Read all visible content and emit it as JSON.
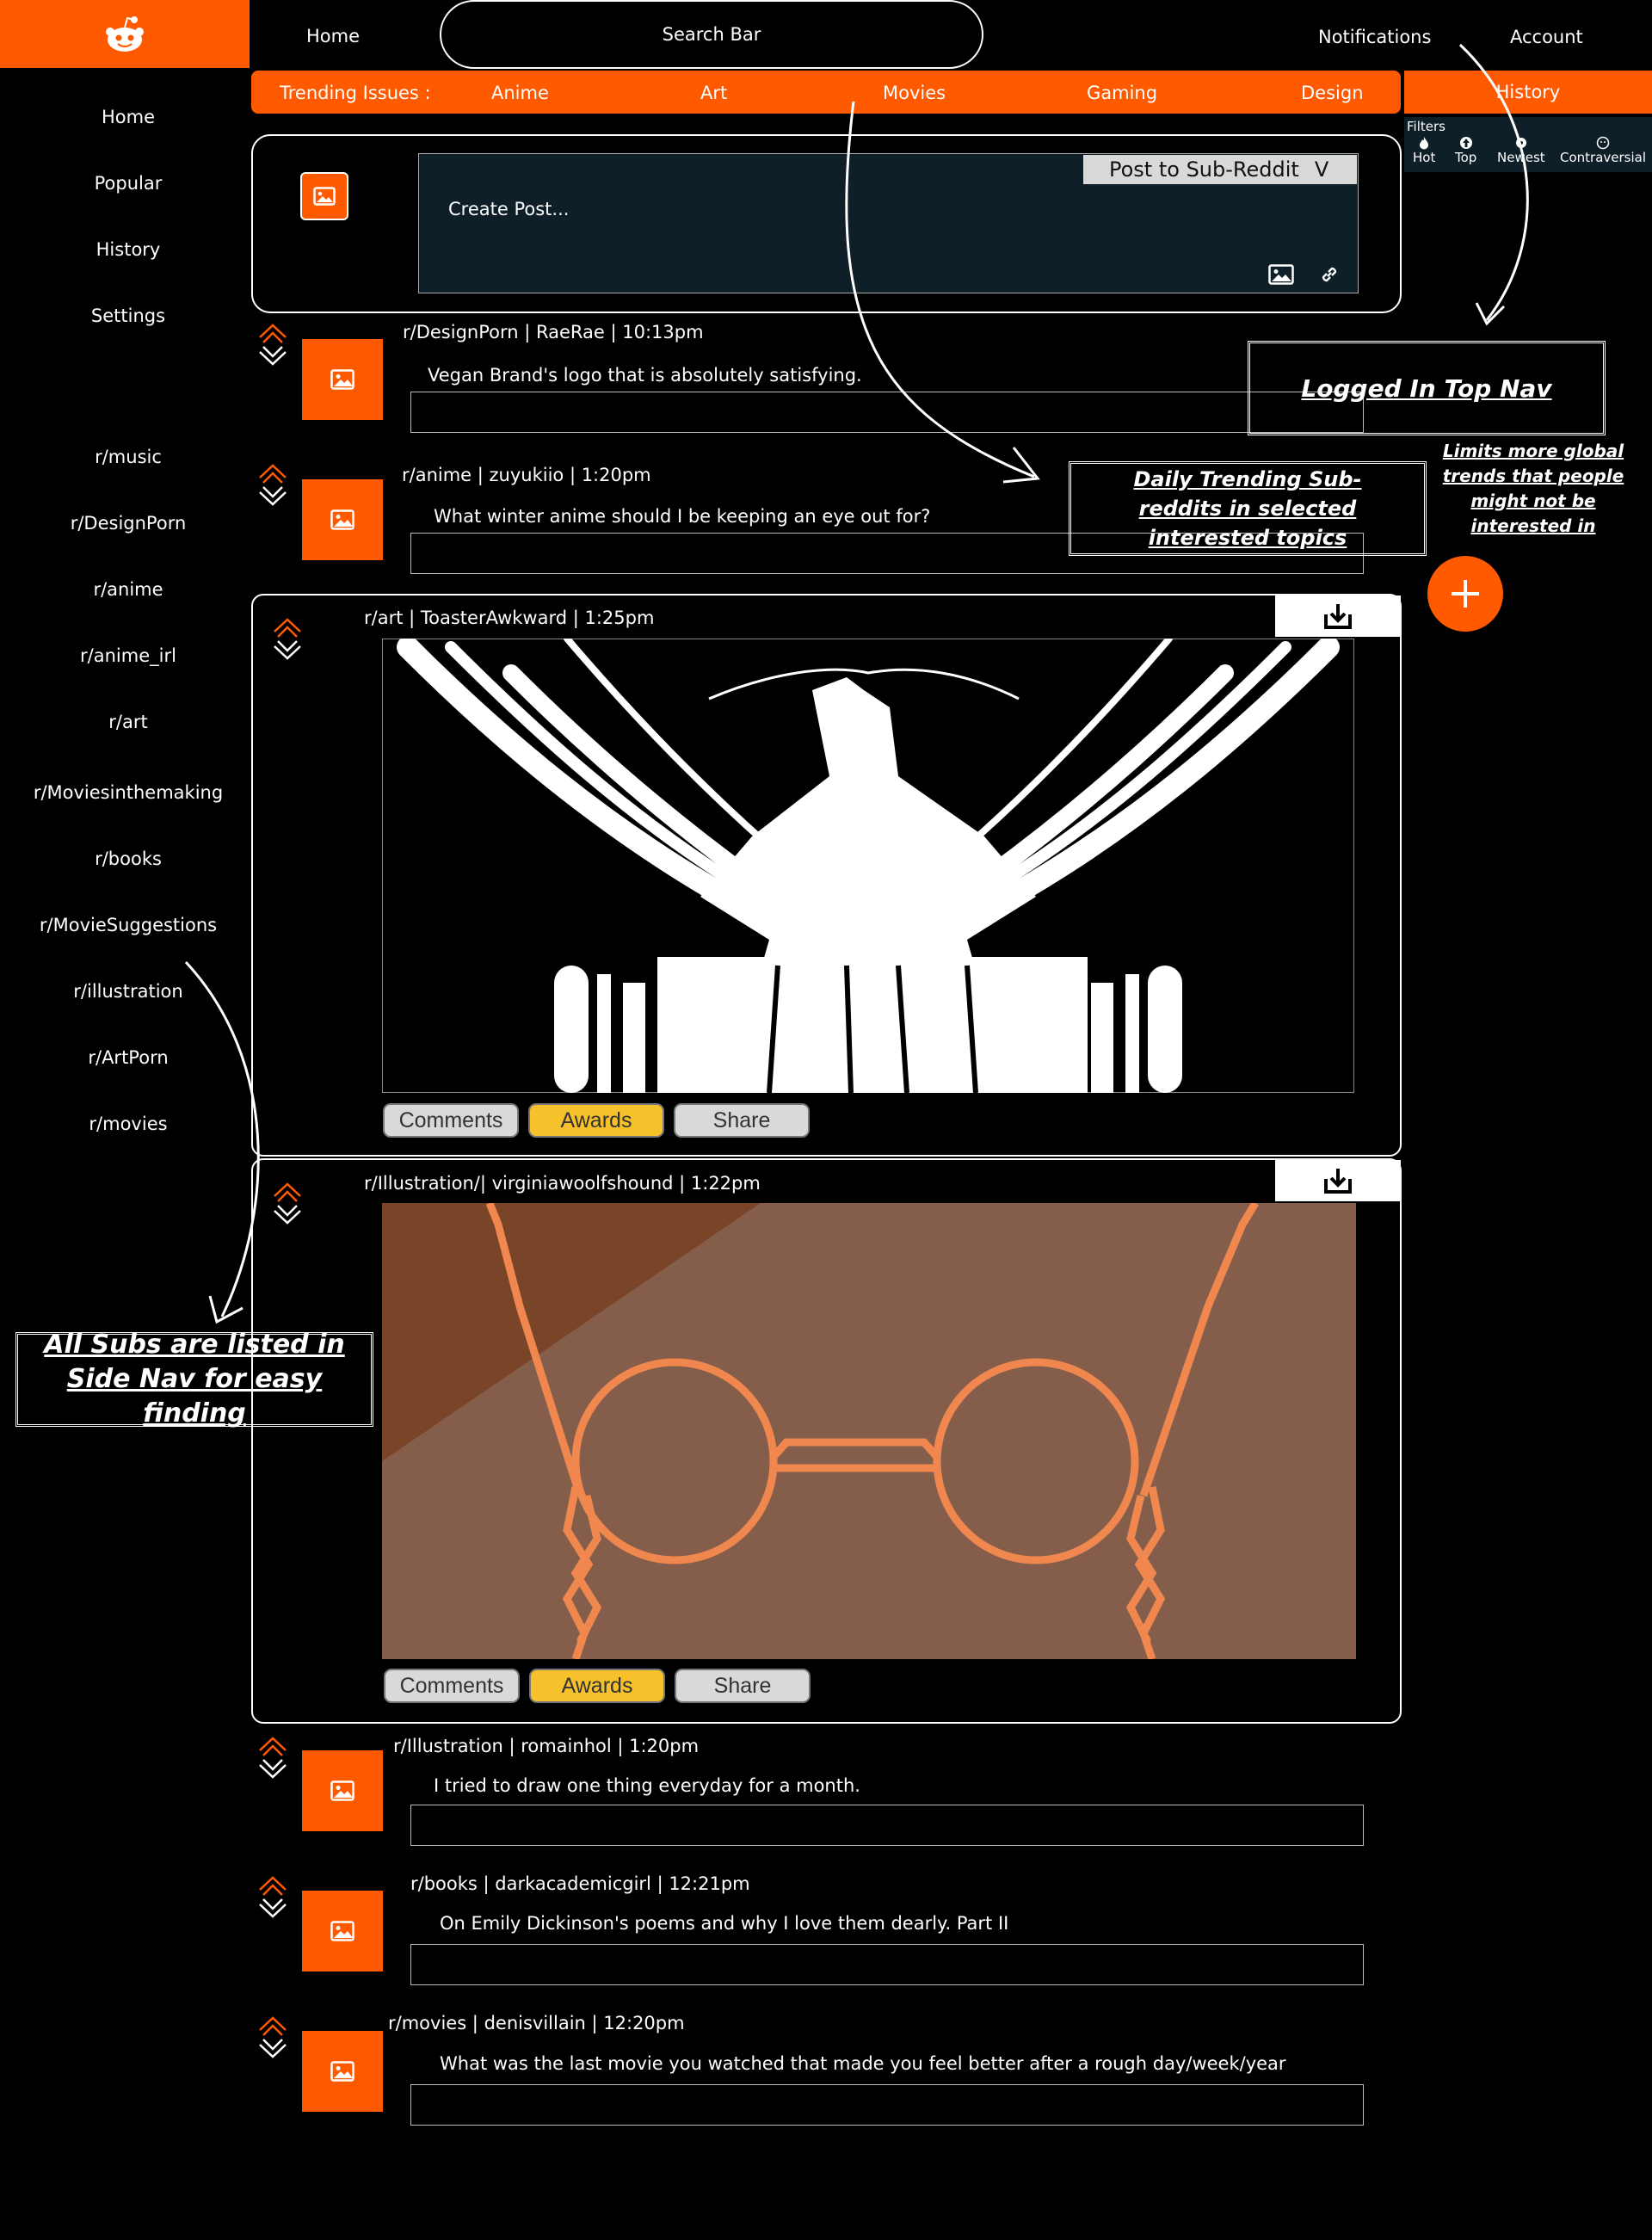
{
  "topnav": {
    "home": "Home",
    "search": "Search Bar",
    "notifications": "Notifications",
    "account": "Account"
  },
  "trending": {
    "label": "Trending Issues :",
    "topics": [
      "Anime",
      "Art",
      "Movies",
      "Gaming",
      "Design"
    ],
    "history": "History"
  },
  "filters": {
    "title": "Filters",
    "items": [
      "Hot",
      "Top",
      "Newest",
      "Contraversial"
    ]
  },
  "sidenav": {
    "main": [
      "Home",
      "Popular",
      "History",
      "Settings"
    ],
    "subs": [
      "r/music",
      "r/DesignPorn",
      "r/anime",
      "r/anime_irl",
      "r/art",
      "r/Moviesinthemaking",
      "r/books",
      "r/MovieSuggestions",
      "r/illustration",
      "r/ArtPorn",
      "r/movies"
    ]
  },
  "create": {
    "placeholder": "Create Post...",
    "post_to": "Post to Sub-Reddit",
    "chevron": "V"
  },
  "posts": [
    {
      "meta": "r/DesignPorn | RaeRae  | 10:13pm",
      "title": "Vegan Brand's logo that is absolutely satisfying."
    },
    {
      "meta": "r/anime | zuyukiio  | 1:20pm",
      "title": "What winter anime should I be keeping an eye out for?"
    },
    {
      "meta": "r/art | ToasterAwkward | 1:25pm"
    },
    {
      "meta": "r/Illustration/| virginiawoolfshound | 1:22pm"
    },
    {
      "meta": "r/Illustration | romainhol  | 1:20pm",
      "title": "I tried to draw one thing everyday for a month."
    },
    {
      "meta": "r/books | darkacademicgirl  | 12:21pm",
      "title": "On Emily Dickinson's poems and why I love them dearly. Part II"
    },
    {
      "meta": "r/movies | denisvillain  | 12:20pm",
      "title": "What was the last movie you watched that made you feel better after a rough day/week/year"
    }
  ],
  "post_buttons": {
    "comments": "Comments",
    "awards": "Awards",
    "share": "Share"
  },
  "annotations": {
    "top_nav": "Logged In Top Nav",
    "trending": "Daily Trending Sub-reddits in selected interested topics",
    "side_nav": "All Subs are listed in Side Nav for easy finding",
    "filters_note": "Limits more global trends that people might not be interested in"
  },
  "colors": {
    "accent": "#ff5a00",
    "panel": "#0e1f28",
    "award": "#f6c12a"
  }
}
